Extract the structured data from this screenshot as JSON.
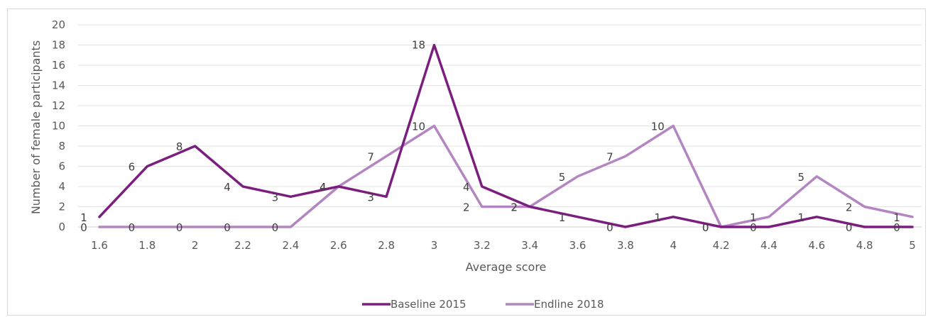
{
  "chart_data": {
    "type": "line",
    "title": "",
    "xlabel": "Average score",
    "ylabel": "Number of female participants",
    "x": [
      "1.6",
      "1.8",
      "2",
      "2.2",
      "2.4",
      "2.6",
      "2.8",
      "3",
      "3.2",
      "3.4",
      "3.6",
      "3.8",
      "4",
      "4.2",
      "4.4",
      "4.6",
      "4.8",
      "5"
    ],
    "ylim": [
      0,
      20
    ],
    "yticks": [
      "0",
      "2",
      "4",
      "6",
      "8",
      "10",
      "12",
      "14",
      "16",
      "18",
      "20"
    ],
    "grid": true,
    "legend": "bottom",
    "series": [
      {
        "name": "Baseline 2015",
        "color": "#7a1f7e",
        "values": [
          1,
          6,
          8,
          4,
          3,
          4,
          3,
          18,
          4,
          2,
          1,
          0,
          1,
          0,
          0,
          1,
          0,
          0
        ]
      },
      {
        "name": "Endline 2018",
        "color": "#b486c1",
        "values": [
          0,
          0,
          0,
          0,
          0,
          4,
          7,
          10,
          2,
          2,
          5,
          7,
          10,
          0,
          1,
          5,
          2,
          1
        ]
      }
    ]
  }
}
